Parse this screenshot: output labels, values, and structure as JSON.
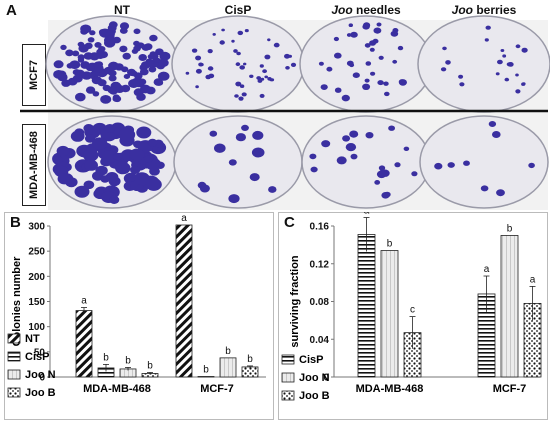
{
  "panelA": {
    "letter": "A",
    "columns": [
      {
        "label": "NT",
        "italic_part": ""
      },
      {
        "label": "CisP",
        "italic_part": ""
      },
      {
        "label": " needles",
        "italic_part": "Joo"
      },
      {
        "label": " berries",
        "italic_part": "Joo"
      }
    ],
    "rows": [
      "MCF7",
      "MDA-MB-468"
    ],
    "colors": {
      "colony": "#3a2fa0",
      "dish_bg": "#e9e8ee",
      "divider": "#111111"
    }
  },
  "chart_data": [
    {
      "panel": "B",
      "type": "bar",
      "ylabel": "Colonies number",
      "ylim": [
        0,
        300
      ],
      "yticks": [
        0,
        50,
        100,
        150,
        200,
        250,
        300
      ],
      "categories": [
        "MDA-MB-468",
        "MCF-7"
      ],
      "series": [
        {
          "name": "NT",
          "pattern": "diagonal",
          "values": [
            132,
            302
          ],
          "errors": [
            6,
            0
          ],
          "letters": [
            "a",
            "a"
          ]
        },
        {
          "name": "CisP",
          "pattern": "horizontal",
          "values": [
            18,
            1
          ],
          "errors": [
            7,
            0
          ],
          "letters": [
            "b",
            "b"
          ]
        },
        {
          "name": "Joo N",
          "pattern": "light",
          "values": [
            16,
            38
          ],
          "errors": [
            3,
            0
          ],
          "letters": [
            "b",
            "b"
          ]
        },
        {
          "name": "Joo B",
          "pattern": "dots",
          "values": [
            7,
            20
          ],
          "errors": [
            2,
            2
          ],
          "letters": [
            "b",
            "b"
          ]
        }
      ]
    },
    {
      "panel": "C",
      "type": "bar",
      "ylabel": "surviving fraction",
      "ylim": [
        0,
        0.16
      ],
      "yticks": [
        "0",
        "0.04",
        "0.08",
        "0.12",
        "0.16"
      ],
      "categories": [
        "MDA-MB-468",
        "MCF-7"
      ],
      "series": [
        {
          "name": "CisP",
          "pattern": "horizontal",
          "values": [
            0.151,
            0.088
          ],
          "errors": [
            0.018,
            0.019
          ],
          "letters": [
            "a",
            "a"
          ]
        },
        {
          "name": "Joo N",
          "pattern": "light",
          "values": [
            0.134,
            0.15
          ],
          "errors": [
            0.0,
            0.0
          ],
          "letters": [
            "b",
            "b"
          ]
        },
        {
          "name": "Joo B",
          "pattern": "dots",
          "values": [
            0.047,
            0.078
          ],
          "errors": [
            0.017,
            0.018
          ],
          "letters": [
            "c",
            "a"
          ]
        }
      ]
    }
  ]
}
